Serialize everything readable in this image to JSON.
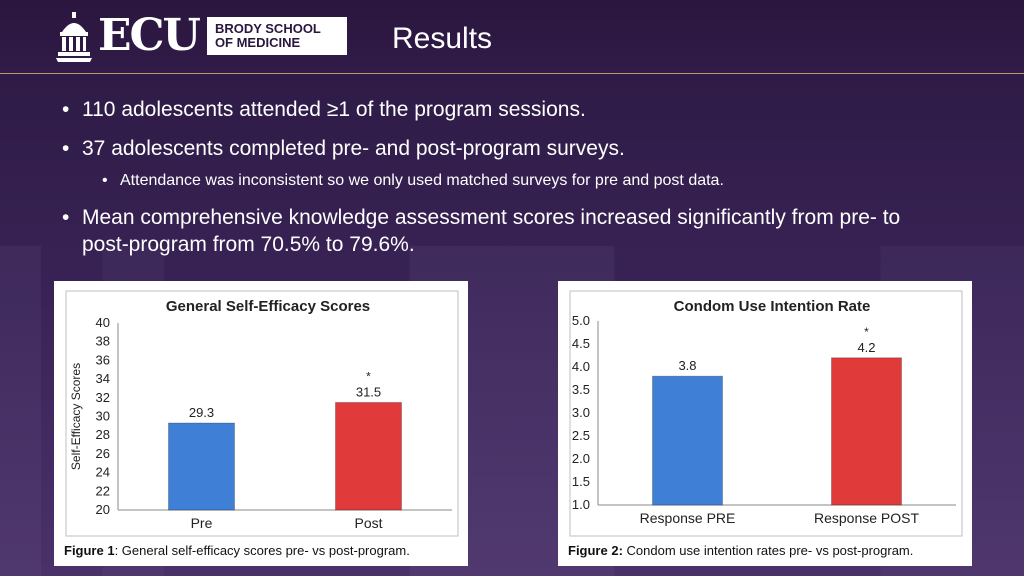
{
  "header": {
    "logo_text": "ECU",
    "logo_box_line1": "BRODY SCHOOL",
    "logo_box_line2": "OF MEDICINE",
    "title": "Results"
  },
  "bullets": [
    "110 adolescents attended ≥1 of the program sessions.",
    "37 adolescents completed pre- and post-program surveys.",
    "Attendance was inconsistent so we only used matched surveys for pre and post data.",
    "Mean comprehensive knowledge assessment scores increased significantly from pre- to post-program from 70.5% to 79.6%."
  ],
  "figures": [
    {
      "label": "Figure 1",
      "caption": ": General self-efficacy scores pre- vs post-program."
    },
    {
      "label": "Figure 2:",
      "caption": " Condom use intention rates pre- vs post-program."
    }
  ],
  "chart_data": [
    {
      "type": "bar",
      "title": "General Self-Efficacy Scores",
      "ylabel": "Self-Efficacy Scores",
      "xlabel": "",
      "categories": [
        "Pre",
        "Post"
      ],
      "values": [
        29.3,
        31.5
      ],
      "value_labels": [
        "29.3",
        "31.5"
      ],
      "ylim": [
        20,
        40
      ],
      "yticks": [
        "20",
        "22",
        "24",
        "26",
        "28",
        "30",
        "32",
        "34",
        "36",
        "38",
        "40"
      ],
      "significance": [
        "",
        "*"
      ],
      "colors": [
        "#3f7fd6",
        "#e03a3a"
      ],
      "grid": false
    },
    {
      "type": "bar",
      "title": "Condom Use Intention Rate",
      "ylabel": "",
      "xlabel": "",
      "categories": [
        "Response PRE",
        "Response POST"
      ],
      "values": [
        3.8,
        4.2
      ],
      "value_labels": [
        "3.8",
        "4.2"
      ],
      "ylim": [
        1.0,
        5.0
      ],
      "yticks": [
        "1.0",
        "1.5",
        "2.0",
        "2.5",
        "3.0",
        "3.5",
        "4.0",
        "4.5",
        "5.0"
      ],
      "significance": [
        "",
        "*"
      ],
      "colors": [
        "#3f7fd6",
        "#e03a3a"
      ],
      "grid": false
    }
  ]
}
